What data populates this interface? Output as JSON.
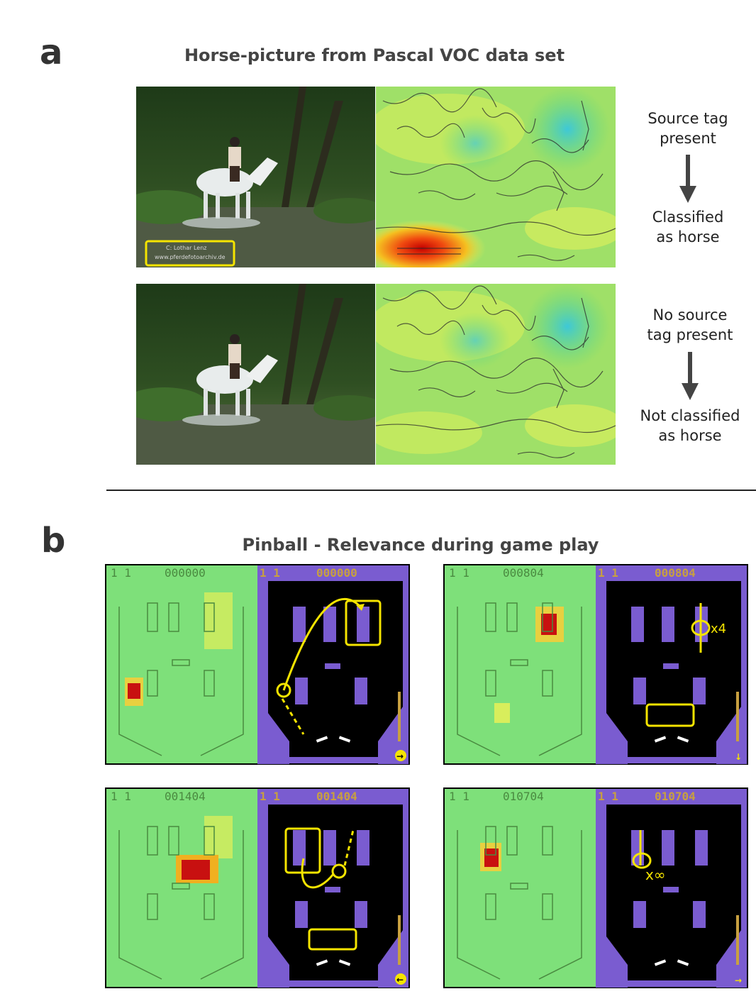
{
  "panel_a": {
    "letter": "a",
    "title": "Horse-picture from Pascal VOC data set",
    "rows": [
      {
        "has_tag": true,
        "tag_line1": "C: Lothar Lenz",
        "tag_line2": "www.pferdefotoarchiv.de",
        "label_top": [
          "Source tag",
          "present"
        ],
        "label_bottom": [
          "Classified",
          "as horse"
        ]
      },
      {
        "has_tag": false,
        "label_top": [
          "No source",
          "tag present"
        ],
        "label_bottom": [
          "Not classified",
          "as horse"
        ]
      }
    ]
  },
  "panel_b": {
    "letter": "b",
    "title": "Pinball - Relevance during game play",
    "frames": [
      {
        "score": "000000",
        "player": "1",
        "ball": "1",
        "annotation": "",
        "corner_arrow": "right"
      },
      {
        "score": "000804",
        "player": "1",
        "ball": "1",
        "annotation": "x4",
        "corner_arrow": "down"
      },
      {
        "score": "001404",
        "player": "1",
        "ball": "1",
        "annotation": "",
        "corner_arrow": "left"
      },
      {
        "score": "010704",
        "player": "1",
        "ball": "1",
        "annotation": "x∞",
        "corner_arrow": "right"
      }
    ]
  },
  "colors": {
    "heat_low": "#5ad87a",
    "heat_mid": "#e8f05a",
    "heat_high": "#d01010",
    "annotation": "#f5e400",
    "game_purple": "#7a5cd0",
    "game_gold": "#c8a040"
  }
}
